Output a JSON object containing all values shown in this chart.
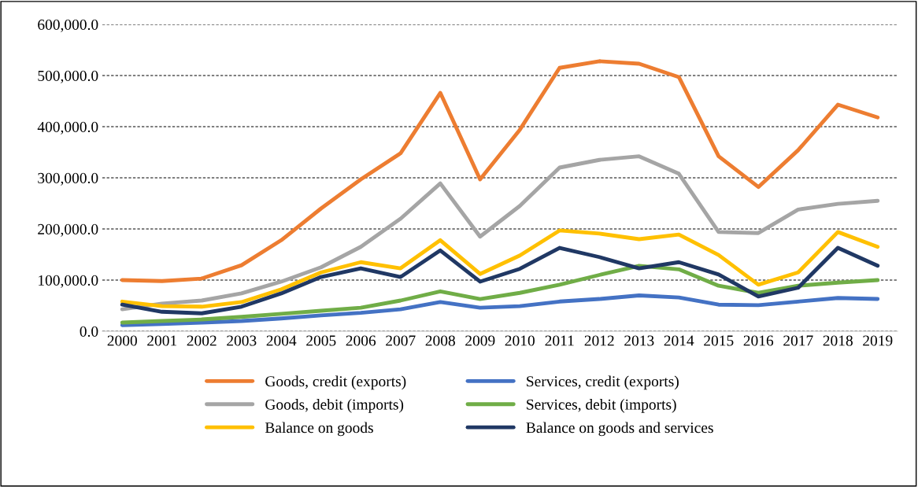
{
  "chart_data": {
    "type": "line",
    "categories": [
      "2000",
      "2001",
      "2002",
      "2003",
      "2004",
      "2005",
      "2006",
      "2007",
      "2008",
      "2009",
      "2010",
      "2011",
      "2012",
      "2013",
      "2014",
      "2015",
      "2016",
      "2017",
      "2018",
      "2019"
    ],
    "series": [
      {
        "name": "Goods, credit (exports)",
        "color": "#ed7d31",
        "values": [
          100000,
          98000,
          103000,
          129000,
          178000,
          240000,
          297000,
          348000,
          466000,
          297000,
          394000,
          515000,
          528000,
          523000,
          497000,
          342000,
          282000,
          354000,
          443000,
          418000
        ]
      },
      {
        "name": "Goods, debit (imports)",
        "color": "#a5a5a5",
        "values": [
          43000,
          54000,
          60000,
          74000,
          97000,
          125000,
          165000,
          220000,
          289000,
          185000,
          245000,
          320000,
          335000,
          342000,
          308000,
          194000,
          192000,
          238000,
          249000,
          255000
        ]
      },
      {
        "name": "Balance on goods",
        "color": "#ffc000",
        "values": [
          58000,
          49000,
          48000,
          57000,
          82000,
          115000,
          135000,
          123000,
          178000,
          112000,
          148000,
          197000,
          191000,
          180000,
          189000,
          149000,
          91000,
          115000,
          194000,
          165000
        ]
      },
      {
        "name": "Services, credit (exports)",
        "color": "#4472c4",
        "values": [
          12000,
          14000,
          17000,
          20000,
          25000,
          31000,
          36000,
          43000,
          57000,
          46000,
          49000,
          58000,
          63000,
          70000,
          66000,
          52000,
          51000,
          58000,
          65000,
          63000
        ]
      },
      {
        "name": "Services, debit (imports)",
        "color": "#70ad47",
        "values": [
          17000,
          20000,
          23000,
          28000,
          34000,
          40000,
          46000,
          60000,
          78000,
          63000,
          75000,
          91000,
          110000,
          128000,
          121000,
          89000,
          75000,
          89000,
          95000,
          100000
        ]
      },
      {
        "name": "Balance on goods and services",
        "color": "#203864",
        "values": [
          52000,
          38000,
          35000,
          48000,
          74000,
          106000,
          123000,
          106000,
          158000,
          97000,
          122000,
          163000,
          145000,
          123000,
          135000,
          111000,
          68000,
          85000,
          163000,
          128000
        ]
      }
    ],
    "ylim": [
      0,
      600000
    ],
    "yticks": [
      {
        "value": 0,
        "label": "0.0"
      },
      {
        "value": 100000,
        "label": "100,000.0"
      },
      {
        "value": 200000,
        "label": "200,000.0"
      },
      {
        "value": 300000,
        "label": "300,000.0"
      },
      {
        "value": 400000,
        "label": "400,000.0"
      },
      {
        "value": 500000,
        "label": "500,000.0"
      },
      {
        "value": 600000,
        "label": "600,000.0"
      }
    ],
    "grid": "y",
    "legend": "bottom",
    "marker": "none",
    "line_style": "solid"
  }
}
